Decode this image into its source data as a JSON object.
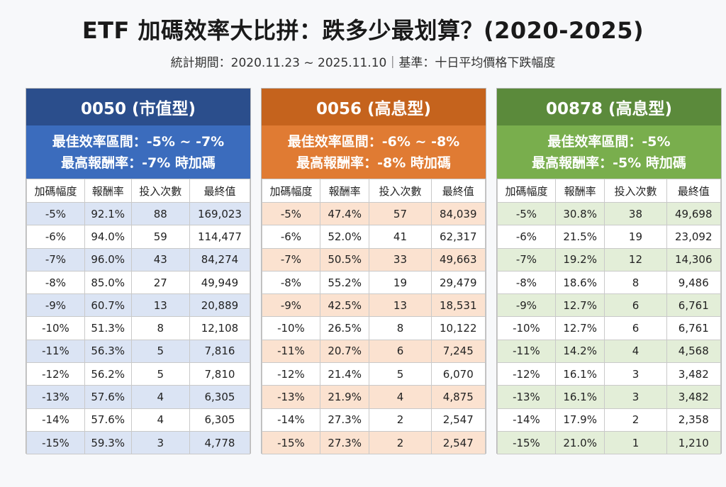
{
  "title": "ETF 加碼效率大比拼：跌多少最划算？(2020-2025)",
  "subtitle": "統計期間：2020.11.23 ~ 2025.11.10｜基準：十日平均價格下跌幅度",
  "columns": [
    "加碼幅度",
    "報酬率",
    "投入次數",
    "最終值"
  ],
  "panels": [
    {
      "name": "0050 (市值型)",
      "best_range": "最佳效率區間：-5% ~ -7%",
      "best_return": "最高報酬率：-7% 時加碼",
      "colors": {
        "dark": "#2b4e8c",
        "mid": "#3b6cbd",
        "tint": "#dbe4f4"
      },
      "rows": [
        [
          "-5%",
          "92.1%",
          "88",
          "169,023"
        ],
        [
          "-6%",
          "94.0%",
          "59",
          "114,477"
        ],
        [
          "-7%",
          "96.0%",
          "43",
          "84,274"
        ],
        [
          "-8%",
          "85.0%",
          "27",
          "49,949"
        ],
        [
          "-9%",
          "60.7%",
          "13",
          "20,889"
        ],
        [
          "-10%",
          "51.3%",
          "8",
          "12,108"
        ],
        [
          "-11%",
          "56.3%",
          "5",
          "7,816"
        ],
        [
          "-12%",
          "56.2%",
          "5",
          "7,810"
        ],
        [
          "-13%",
          "57.6%",
          "4",
          "6,305"
        ],
        [
          "-14%",
          "57.6%",
          "4",
          "6,305"
        ],
        [
          "-15%",
          "59.3%",
          "3",
          "4,778"
        ]
      ]
    },
    {
      "name": "0056 (高息型)",
      "best_range": "最佳效率區間：-6% ~ -8%",
      "best_return": "最高報酬率：-8% 時加碼",
      "colors": {
        "dark": "#c5631d",
        "mid": "#e07b33",
        "tint": "#fbe2d0"
      },
      "rows": [
        [
          "-5%",
          "47.4%",
          "57",
          "84,039"
        ],
        [
          "-6%",
          "52.0%",
          "41",
          "62,317"
        ],
        [
          "-7%",
          "50.5%",
          "33",
          "49,663"
        ],
        [
          "-8%",
          "55.2%",
          "19",
          "29,479"
        ],
        [
          "-9%",
          "42.5%",
          "13",
          "18,531"
        ],
        [
          "-10%",
          "26.5%",
          "8",
          "10,122"
        ],
        [
          "-11%",
          "20.7%",
          "6",
          "7,245"
        ],
        [
          "-12%",
          "21.4%",
          "5",
          "6,070"
        ],
        [
          "-13%",
          "21.9%",
          "4",
          "4,875"
        ],
        [
          "-14%",
          "27.3%",
          "2",
          "2,547"
        ],
        [
          "-15%",
          "27.3%",
          "2",
          "2,547"
        ]
      ]
    },
    {
      "name": "00878 (高息型)",
      "best_range": "最佳效率區間：-5%",
      "best_return": "最高報酬率：-5% 時加碼",
      "colors": {
        "dark": "#5b8a3b",
        "mid": "#79ae4d",
        "tint": "#e3eed8"
      },
      "rows": [
        [
          "-5%",
          "30.8%",
          "38",
          "49,698"
        ],
        [
          "-6%",
          "21.5%",
          "19",
          "23,092"
        ],
        [
          "-7%",
          "19.2%",
          "12",
          "14,306"
        ],
        [
          "-8%",
          "18.6%",
          "8",
          "9,486"
        ],
        [
          "-9%",
          "12.7%",
          "6",
          "6,761"
        ],
        [
          "-10%",
          "12.7%",
          "6",
          "6,761"
        ],
        [
          "-11%",
          "14.2%",
          "4",
          "4,568"
        ],
        [
          "-12%",
          "16.1%",
          "3",
          "3,482"
        ],
        [
          "-13%",
          "16.1%",
          "3",
          "3,482"
        ],
        [
          "-14%",
          "17.9%",
          "2",
          "2,358"
        ],
        [
          "-15%",
          "21.0%",
          "1",
          "1,210"
        ]
      ]
    }
  ]
}
